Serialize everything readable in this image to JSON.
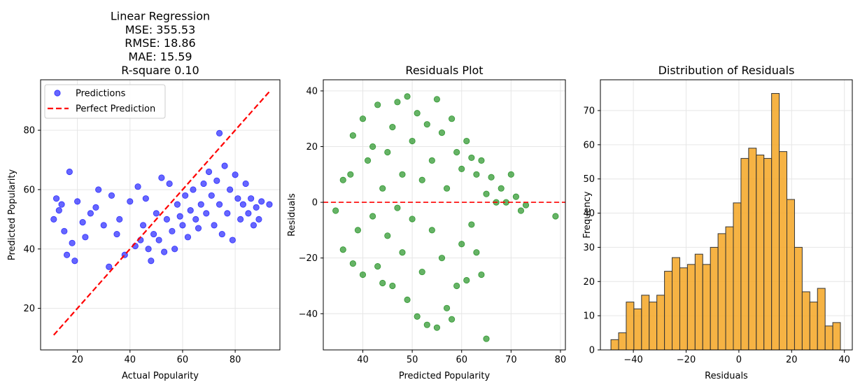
{
  "chart_data": [
    {
      "type": "scatter",
      "title": [
        "Linear Regression",
        "MSE: 355.53",
        "RMSE: 18.86",
        "MAE: 15.59",
        "R-square 0.10"
      ],
      "xlabel": "Actual Popularity",
      "ylabel": "Predicted Popularity",
      "xlim": [
        6,
        97
      ],
      "ylim": [
        6,
        97
      ],
      "xticks": [
        20,
        40,
        60,
        80
      ],
      "yticks": [
        20,
        40,
        60,
        80
      ],
      "grid": true,
      "legend": {
        "placement": "top-left",
        "entries": [
          "Predictions",
          "Perfect Prediction"
        ]
      },
      "colors": {
        "points": "#0000ff",
        "reference_line": "#ff0000"
      },
      "reference_line": {
        "name": "Perfect Prediction",
        "x": [
          11,
          93
        ],
        "y": [
          11,
          93
        ],
        "style": "dashed"
      },
      "series": [
        {
          "name": "Predictions",
          "points": [
            [
              11,
              50
            ],
            [
              12,
              57
            ],
            [
              13,
              53
            ],
            [
              14,
              55
            ],
            [
              15,
              46
            ],
            [
              16,
              38
            ],
            [
              17,
              66
            ],
            [
              18,
              42
            ],
            [
              19,
              36
            ],
            [
              20,
              56
            ],
            [
              22,
              49
            ],
            [
              23,
              44
            ],
            [
              25,
              52
            ],
            [
              27,
              54
            ],
            [
              28,
              60
            ],
            [
              30,
              48
            ],
            [
              32,
              34
            ],
            [
              33,
              58
            ],
            [
              35,
              45
            ],
            [
              36,
              50
            ],
            [
              38,
              38
            ],
            [
              40,
              56
            ],
            [
              42,
              41
            ],
            [
              43,
              61
            ],
            [
              44,
              43
            ],
            [
              45,
              48
            ],
            [
              46,
              57
            ],
            [
              47,
              40
            ],
            [
              48,
              36
            ],
            [
              49,
              45
            ],
            [
              50,
              52
            ],
            [
              51,
              43
            ],
            [
              52,
              64
            ],
            [
              53,
              39
            ],
            [
              54,
              50
            ],
            [
              55,
              62
            ],
            [
              56,
              46
            ],
            [
              57,
              40
            ],
            [
              58,
              55
            ],
            [
              59,
              51
            ],
            [
              60,
              48
            ],
            [
              61,
              58
            ],
            [
              62,
              44
            ],
            [
              63,
              53
            ],
            [
              64,
              60
            ],
            [
              65,
              50
            ],
            [
              66,
              47
            ],
            [
              67,
              55
            ],
            [
              68,
              62
            ],
            [
              69,
              52
            ],
            [
              70,
              66
            ],
            [
              71,
              58
            ],
            [
              72,
              48
            ],
            [
              73,
              63
            ],
            [
              74,
              79
            ],
            [
              74,
              55
            ],
            [
              75,
              45
            ],
            [
              76,
              68
            ],
            [
              77,
              52
            ],
            [
              78,
              60
            ],
            [
              79,
              43
            ],
            [
              80,
              65
            ],
            [
              81,
              57
            ],
            [
              82,
              50
            ],
            [
              83,
              55
            ],
            [
              84,
              62
            ],
            [
              85,
              52
            ],
            [
              86,
              57
            ],
            [
              87,
              48
            ],
            [
              88,
              54
            ],
            [
              89,
              50
            ],
            [
              90,
              56
            ],
            [
              93,
              55
            ]
          ]
        }
      ]
    },
    {
      "type": "scatter",
      "title": [
        "Residuals Plot"
      ],
      "xlabel": "Predicted Popularity",
      "ylabel": "Residuals",
      "xlim": [
        32,
        81
      ],
      "ylim": [
        -53,
        44
      ],
      "xticks": [
        40,
        50,
        60,
        70,
        80
      ],
      "yticks": [
        -40,
        -20,
        0,
        20,
        40
      ],
      "grid": true,
      "colors": {
        "points": "#008000",
        "reference_line": "#ff0000"
      },
      "reference_line": {
        "y": 0,
        "style": "dashed"
      },
      "series": [
        {
          "points": [
            [
              34.5,
              -3
            ],
            [
              36,
              -17
            ],
            [
              36,
              8
            ],
            [
              37.5,
              10
            ],
            [
              38,
              -22
            ],
            [
              38,
              24
            ],
            [
              39,
              -10
            ],
            [
              40,
              -26
            ],
            [
              40,
              30
            ],
            [
              41,
              15
            ],
            [
              42,
              -5
            ],
            [
              42,
              20
            ],
            [
              43,
              -23
            ],
            [
              43,
              35
            ],
            [
              44,
              -29
            ],
            [
              44,
              5
            ],
            [
              45,
              -12
            ],
            [
              45,
              18
            ],
            [
              46,
              -30
            ],
            [
              46,
              27
            ],
            [
              47,
              -2
            ],
            [
              47,
              36
            ],
            [
              48,
              -18
            ],
            [
              48,
              10
            ],
            [
              49,
              -35
            ],
            [
              49,
              38
            ],
            [
              50,
              -6
            ],
            [
              50,
              22
            ],
            [
              51,
              -41
            ],
            [
              51,
              32
            ],
            [
              52,
              -25
            ],
            [
              52,
              8
            ],
            [
              53,
              -44
            ],
            [
              53,
              28
            ],
            [
              54,
              -10
            ],
            [
              54,
              15
            ],
            [
              55,
              -45
            ],
            [
              55,
              37
            ],
            [
              56,
              -20
            ],
            [
              56,
              25
            ],
            [
              57,
              -38
            ],
            [
              57,
              5
            ],
            [
              58,
              -42
            ],
            [
              58,
              30
            ],
            [
              59,
              -30
            ],
            [
              59,
              18
            ],
            [
              60,
              -15
            ],
            [
              60,
              12
            ],
            [
              61,
              -28
            ],
            [
              61,
              22
            ],
            [
              62,
              -8
            ],
            [
              62,
              16
            ],
            [
              63,
              -18
            ],
            [
              63,
              10
            ],
            [
              64,
              -26
            ],
            [
              64,
              15
            ],
            [
              65,
              3
            ],
            [
              65,
              -49
            ],
            [
              66,
              9
            ],
            [
              67,
              0
            ],
            [
              68,
              5
            ],
            [
              69,
              0
            ],
            [
              70,
              10
            ],
            [
              71,
              2
            ],
            [
              72,
              -3
            ],
            [
              73,
              -1
            ],
            [
              79,
              -5
            ]
          ]
        }
      ]
    },
    {
      "type": "bar",
      "title": [
        "Distribution of Residuals"
      ],
      "xlabel": "Residuals",
      "ylabel": "Frequency",
      "xlim": [
        -52.5,
        43
      ],
      "ylim": [
        0,
        79
      ],
      "xticks": [
        -40,
        -20,
        0,
        20,
        40
      ],
      "yticks": [
        0,
        10,
        20,
        30,
        40,
        50,
        60,
        70
      ],
      "grid": true,
      "colors": {
        "bars": "#f5a623",
        "edge": "#333333"
      },
      "bin_start": -48.5,
      "bin_width": 2.9,
      "values": [
        3,
        5,
        14,
        12,
        16,
        14,
        16,
        23,
        27,
        24,
        25,
        28,
        25,
        30,
        34,
        36,
        43,
        56,
        59,
        57,
        56,
        75,
        58,
        44,
        30,
        17,
        14,
        18,
        7,
        8
      ]
    }
  ]
}
